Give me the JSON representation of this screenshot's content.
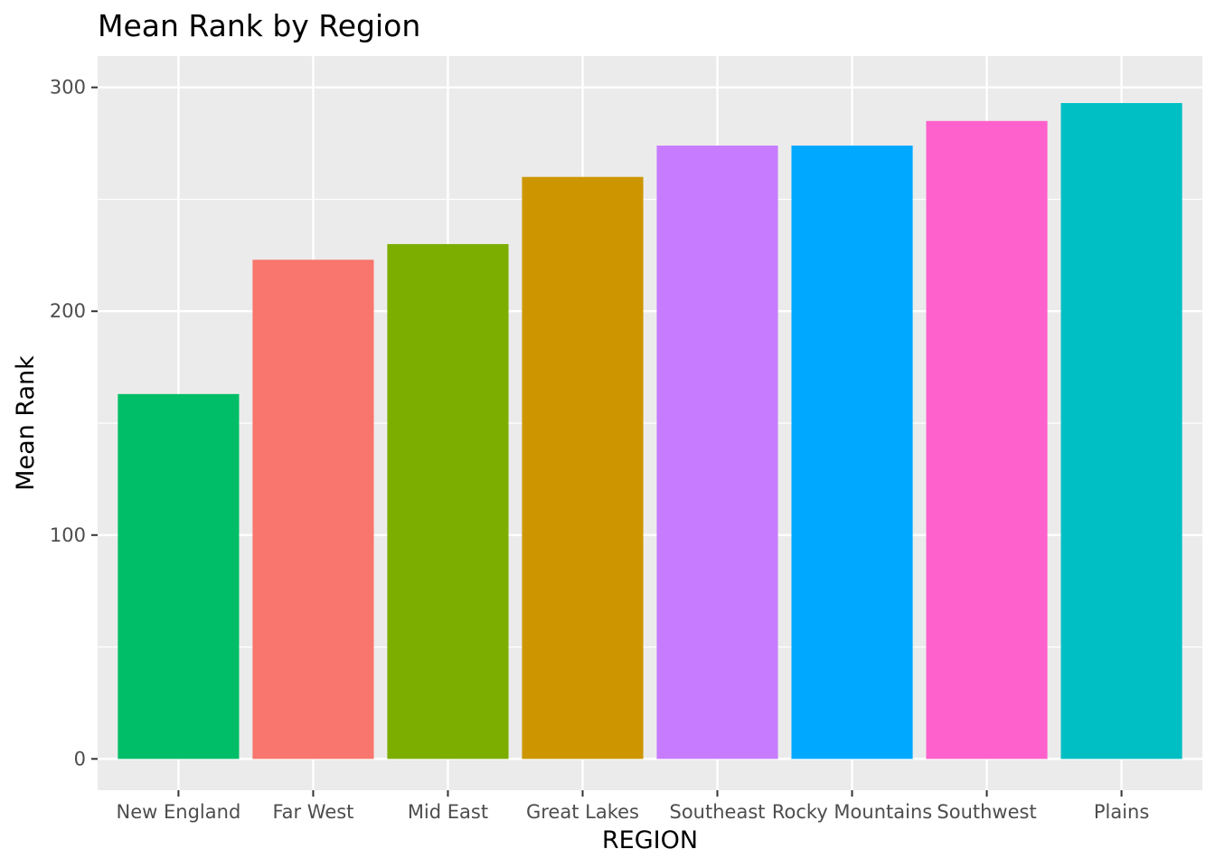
{
  "chart_data": {
    "type": "bar",
    "title": "Mean Rank by Region",
    "xlabel": "REGION",
    "ylabel": "Mean Rank",
    "categories": [
      "New England",
      "Far West",
      "Mid East",
      "Great Lakes",
      "Southeast",
      "Rocky Mountains",
      "Southwest",
      "Plains"
    ],
    "values": [
      163,
      223,
      230,
      260,
      274,
      274,
      285,
      293
    ],
    "colors": [
      "#00BE67",
      "#F8766D",
      "#7CAE00",
      "#CD9600",
      "#C77CFF",
      "#00A9FF",
      "#FF61CC",
      "#00BFC4"
    ],
    "yticks": [
      0,
      100,
      200,
      300
    ],
    "ylim": [
      -14,
      314
    ],
    "grid": true,
    "legend": "none",
    "panel_background": "#EBEBEB",
    "grid_color": "#FFFFFF"
  }
}
